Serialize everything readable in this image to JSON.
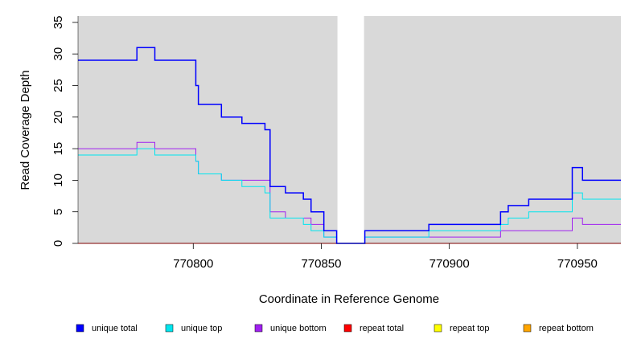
{
  "chart_data": {
    "type": "line",
    "xlabel": "Coordinate in Reference Genome",
    "ylabel": "Read Coverage Depth",
    "xlim": [
      770755,
      770967
    ],
    "ylim": [
      0,
      36
    ],
    "x_ticks": [
      770800,
      770850,
      770900,
      770950
    ],
    "y_ticks": [
      0,
      5,
      10,
      15,
      20,
      25,
      30,
      35
    ],
    "gap": [
      770856,
      770867
    ],
    "background_color": "#d9d9d9",
    "series": [
      {
        "name": "unique total",
        "color": "#0000ff",
        "x": [
          770755,
          770778,
          770785,
          770801,
          770802,
          770811,
          770819,
          770828,
          770830,
          770836,
          770843,
          770846,
          770851,
          770856,
          770867,
          770892,
          770920,
          770923,
          770931,
          770948,
          770952,
          770967
        ],
        "values": [
          29,
          31,
          29,
          25,
          22,
          20,
          19,
          18,
          9,
          8,
          7,
          5,
          2,
          0,
          2,
          3,
          5,
          6,
          7,
          12,
          10,
          10
        ]
      },
      {
        "name": "unique top",
        "color": "#00e5ee",
        "x": [
          770755,
          770778,
          770785,
          770801,
          770802,
          770811,
          770819,
          770828,
          770830,
          770836,
          770843,
          770846,
          770851,
          770856,
          770867,
          770892,
          770920,
          770923,
          770931,
          770948,
          770952,
          770967
        ],
        "values": [
          14,
          15,
          14,
          13,
          11,
          10,
          9,
          8,
          4,
          4,
          3,
          2,
          1,
          0,
          1,
          2,
          3,
          4,
          5,
          8,
          7,
          7
        ]
      },
      {
        "name": "unique bottom",
        "color": "#a020f0",
        "x": [
          770755,
          770778,
          770785,
          770801,
          770802,
          770811,
          770819,
          770828,
          770830,
          770836,
          770843,
          770846,
          770851,
          770856,
          770867,
          770892,
          770920,
          770923,
          770931,
          770948,
          770952,
          770967
        ],
        "values": [
          15,
          16,
          15,
          13,
          11,
          10,
          10,
          10,
          5,
          4,
          4,
          3,
          1,
          0,
          1,
          1,
          2,
          2,
          2,
          4,
          3,
          3
        ]
      },
      {
        "name": "repeat total",
        "color": "#ff0000",
        "x": [
          770755,
          770967
        ],
        "values": [
          0,
          0
        ]
      },
      {
        "name": "repeat top",
        "color": "#ffff00",
        "x": [
          770755,
          770967
        ],
        "values": [
          0,
          0
        ]
      },
      {
        "name": "repeat bottom",
        "color": "#ffa500",
        "x": [
          770755,
          770967
        ],
        "values": [
          0,
          0
        ]
      }
    ],
    "legend": [
      "unique total",
      "unique top",
      "unique bottom",
      "repeat total",
      "repeat top",
      "repeat bottom"
    ]
  }
}
